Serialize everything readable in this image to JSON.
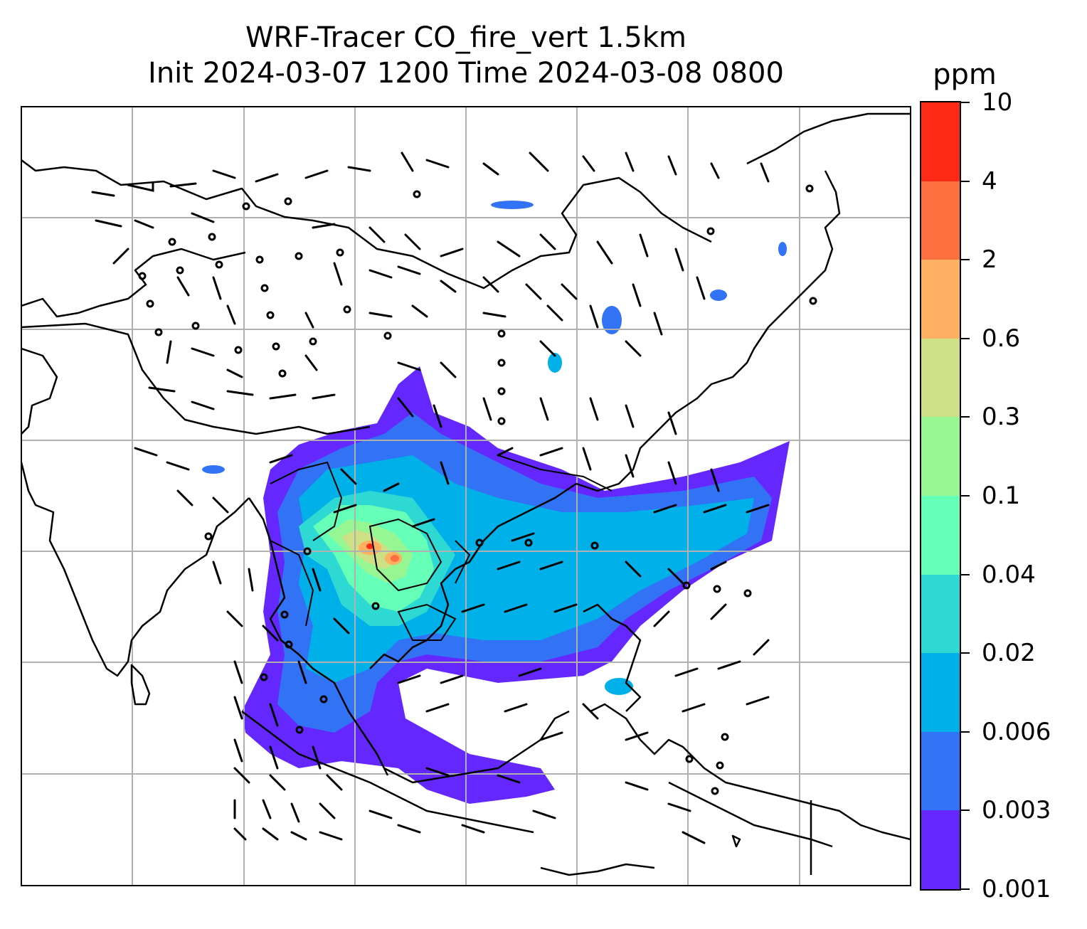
{
  "title_line1": "WRF-Tracer CO_fire_vert 1.5km",
  "title_line2": "Init 2024-03-07 1200 Time 2024-03-08 0800",
  "colorbar": {
    "unit": "ppm",
    "levels": [
      "0.001",
      "0.003",
      "0.006",
      "0.02",
      "0.04",
      "0.1",
      "0.3",
      "0.6",
      "2",
      "4",
      "10"
    ],
    "colors": [
      "#6428ff",
      "#3273f5",
      "#00b0e8",
      "#2ed9d4",
      "#66ffb8",
      "#96f792",
      "#cde085",
      "#ffb060",
      "#ff7040",
      "#ff2a15"
    ]
  },
  "map": {
    "region": "South and East Asia",
    "layers": [
      "coastlines",
      "country borders",
      "gridlines",
      "tracer concentration fill",
      "wind barbs"
    ]
  }
}
